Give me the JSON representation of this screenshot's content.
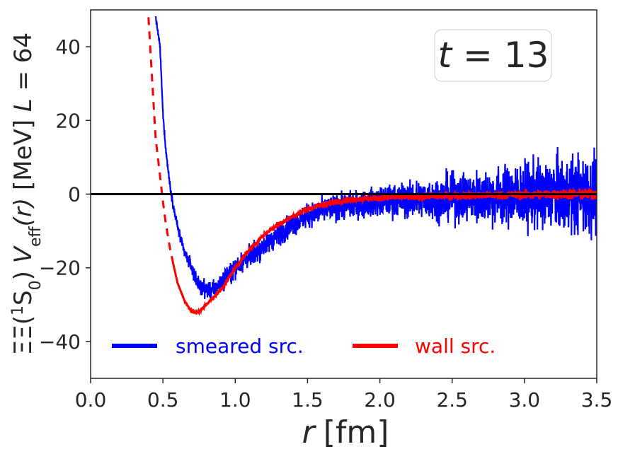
{
  "chart_data": {
    "type": "line",
    "title": "",
    "xlabel_var": "r",
    "xlabel_unit": "[fm]",
    "ylabel_prefix": "ΞΞ(",
    "ylabel_sup": "1",
    "ylabel_state": "S",
    "ylabel_sub0": "0",
    "ylabel_mid": ") ",
    "ylabel_V": "V",
    "ylabel_sub": "eff",
    "ylabel_r": "(r)",
    "ylabel_unit": " [MeV] ",
    "ylabel_L": "L",
    "ylabel_eq": " = 64",
    "xlim": [
      0.0,
      3.5
    ],
    "ylim": [
      -50,
      50
    ],
    "xticks": [
      0.0,
      0.5,
      1.0,
      1.5,
      2.0,
      2.5,
      3.0,
      3.5
    ],
    "xtick_labels": [
      "0.0",
      "0.5",
      "1.0",
      "1.5",
      "2.0",
      "2.5",
      "3.0",
      "3.5"
    ],
    "yticks": [
      -40,
      -20,
      0,
      20,
      40
    ],
    "ytick_labels": [
      "−40",
      "−20",
      "0",
      "20",
      "40"
    ],
    "annotation": {
      "var": "t",
      "eq": " = 13"
    },
    "zero_line": 0,
    "series": [
      {
        "name": "smeared src.",
        "color": "#0000ff",
        "style": "solid",
        "points": [
          [
            0.45,
            48
          ],
          [
            0.48,
            40
          ],
          [
            0.5,
            22
          ],
          [
            0.52,
            12
          ],
          [
            0.55,
            2
          ],
          [
            0.58,
            -5
          ],
          [
            0.62,
            -12
          ],
          [
            0.65,
            -16
          ],
          [
            0.7,
            -20
          ],
          [
            0.75,
            -25
          ],
          [
            0.8,
            -26
          ],
          [
            0.85,
            -26
          ],
          [
            0.9,
            -24
          ],
          [
            1.0,
            -20
          ],
          [
            1.1,
            -17
          ],
          [
            1.2,
            -14
          ],
          [
            1.3,
            -11
          ],
          [
            1.4,
            -8
          ],
          [
            1.5,
            -6
          ],
          [
            1.6,
            -4.5
          ],
          [
            1.7,
            -3.5
          ],
          [
            1.8,
            -3
          ],
          [
            2.0,
            -2
          ],
          [
            2.2,
            -1.5
          ],
          [
            2.5,
            -1
          ],
          [
            2.8,
            -0.5
          ],
          [
            3.0,
            -0.3
          ],
          [
            3.2,
            0
          ],
          [
            3.5,
            0
          ]
        ],
        "noise": [
          [
            0.5,
            1
          ],
          [
            0.8,
            3
          ],
          [
            1.0,
            3.5
          ],
          [
            1.5,
            4
          ],
          [
            2.0,
            5
          ],
          [
            2.5,
            8
          ],
          [
            3.0,
            11
          ],
          [
            3.5,
            14
          ]
        ]
      },
      {
        "name": "wall src.",
        "color": "#ff0000",
        "style": "dashed",
        "points": [
          [
            0.4,
            48
          ],
          [
            0.43,
            28
          ],
          [
            0.45,
            15
          ],
          [
            0.48,
            5
          ],
          [
            0.5,
            -2
          ],
          [
            0.52,
            -8
          ],
          [
            0.55,
            -15
          ],
          [
            0.6,
            -24
          ],
          [
            0.65,
            -29
          ],
          [
            0.7,
            -32
          ],
          [
            0.75,
            -32
          ],
          [
            0.8,
            -30
          ],
          [
            0.9,
            -26
          ],
          [
            1.0,
            -20
          ],
          [
            1.1,
            -15
          ],
          [
            1.2,
            -11
          ],
          [
            1.3,
            -8
          ],
          [
            1.4,
            -6
          ],
          [
            1.5,
            -4
          ],
          [
            1.6,
            -3
          ],
          [
            1.7,
            -2
          ],
          [
            1.8,
            -1.5
          ],
          [
            2.0,
            -1
          ],
          [
            2.5,
            -0.5
          ],
          [
            3.0,
            -0.2
          ],
          [
            3.5,
            0
          ]
        ],
        "noise": [
          [
            0.5,
            0
          ],
          [
            0.9,
            0.6
          ],
          [
            1.5,
            1
          ],
          [
            2.0,
            1
          ],
          [
            3.0,
            1.5
          ],
          [
            3.5,
            2
          ]
        ]
      }
    ],
    "legend_position": "lower-center"
  }
}
